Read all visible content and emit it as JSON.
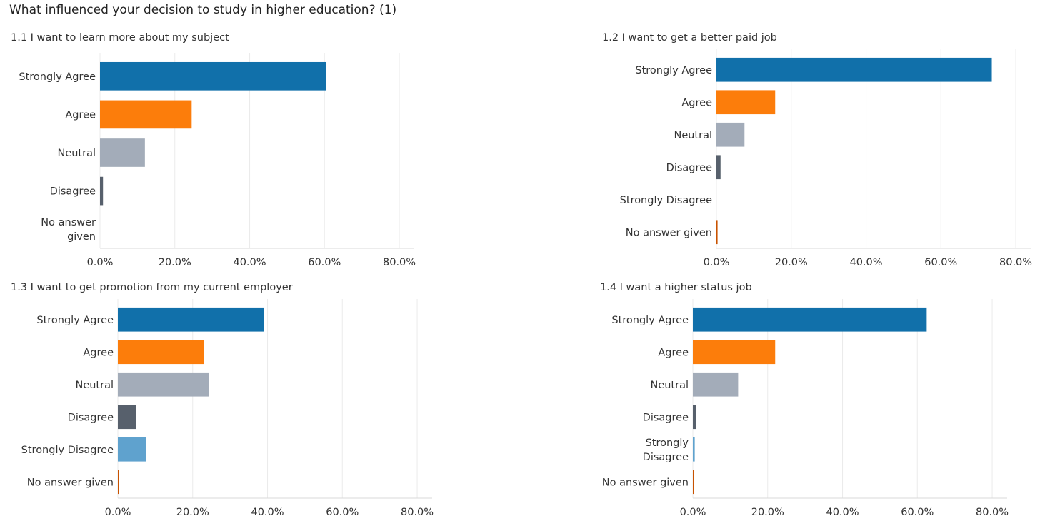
{
  "page": {
    "title": "What influenced your decision to study in higher education? (1)"
  },
  "chart_data": [
    {
      "type": "bar",
      "orientation": "horizontal",
      "title": "1.1 I want to learn more about my subject",
      "categories": [
        "Strongly Agree",
        "Agree",
        "Neutral",
        "Disagree",
        "No answer given"
      ],
      "values": [
        60.5,
        24.5,
        12.0,
        0.8,
        0.0
      ],
      "xlim": [
        0,
        84
      ],
      "ticks": [
        0,
        20,
        40,
        60,
        80
      ],
      "tick_labels": [
        "0.0%",
        "20.0%",
        "40.0%",
        "60.0%",
        "80.0%"
      ],
      "grid": "vertical",
      "legend": "none"
    },
    {
      "type": "bar",
      "orientation": "horizontal",
      "title": "1.2 I want to get a better paid job",
      "categories": [
        "Strongly Agree",
        "Agree",
        "Neutral",
        "Disagree",
        "Strongly Disagree",
        "No answer given"
      ],
      "values": [
        73.6,
        15.7,
        7.5,
        1.1,
        0.0,
        0.3
      ],
      "xlim": [
        0,
        84
      ],
      "ticks": [
        0,
        20,
        40,
        60,
        80
      ],
      "tick_labels": [
        "0.0%",
        "20.0%",
        "40.0%",
        "60.0%",
        "80.0%"
      ],
      "grid": "vertical",
      "legend": "none"
    },
    {
      "type": "bar",
      "orientation": "horizontal",
      "title": "1.3 I want to get promotion from my current employer",
      "categories": [
        "Strongly Agree",
        "Agree",
        "Neutral",
        "Disagree",
        "Strongly Disagree",
        "No answer given"
      ],
      "values": [
        39.0,
        23.0,
        24.4,
        4.9,
        7.5,
        0.3
      ],
      "xlim": [
        0,
        84
      ],
      "ticks": [
        0,
        20,
        40,
        60,
        80
      ],
      "tick_labels": [
        "0.0%",
        "20.0%",
        "40.0%",
        "60.0%",
        "80.0%"
      ],
      "grid": "vertical",
      "legend": "none"
    },
    {
      "type": "bar",
      "orientation": "horizontal",
      "title": "1.4 I want a higher status job",
      "categories": [
        "Strongly Agree",
        "Agree",
        "Neutral",
        "Disagree",
        "Strongly Disagree",
        "No answer given"
      ],
      "values": [
        62.5,
        22.0,
        12.1,
        0.9,
        0.5,
        0.3
      ],
      "xlim": [
        0,
        84
      ],
      "ticks": [
        0,
        20,
        40,
        60,
        80
      ],
      "tick_labels": [
        "0.0%",
        "20.0%",
        "40.0%",
        "60.0%",
        "80.0%"
      ],
      "grid": "vertical",
      "legend": "none"
    }
  ],
  "colors": {
    "Strongly Agree": "#1170aa",
    "Agree": "#fc7d0b",
    "Neutral": "#a3acb9",
    "Disagree": "#57606c",
    "Strongly Disagree": "#5fa2ce",
    "No answer given": "#c85200",
    "grid": "#ebebeb",
    "axis": "#d9d9d9"
  }
}
